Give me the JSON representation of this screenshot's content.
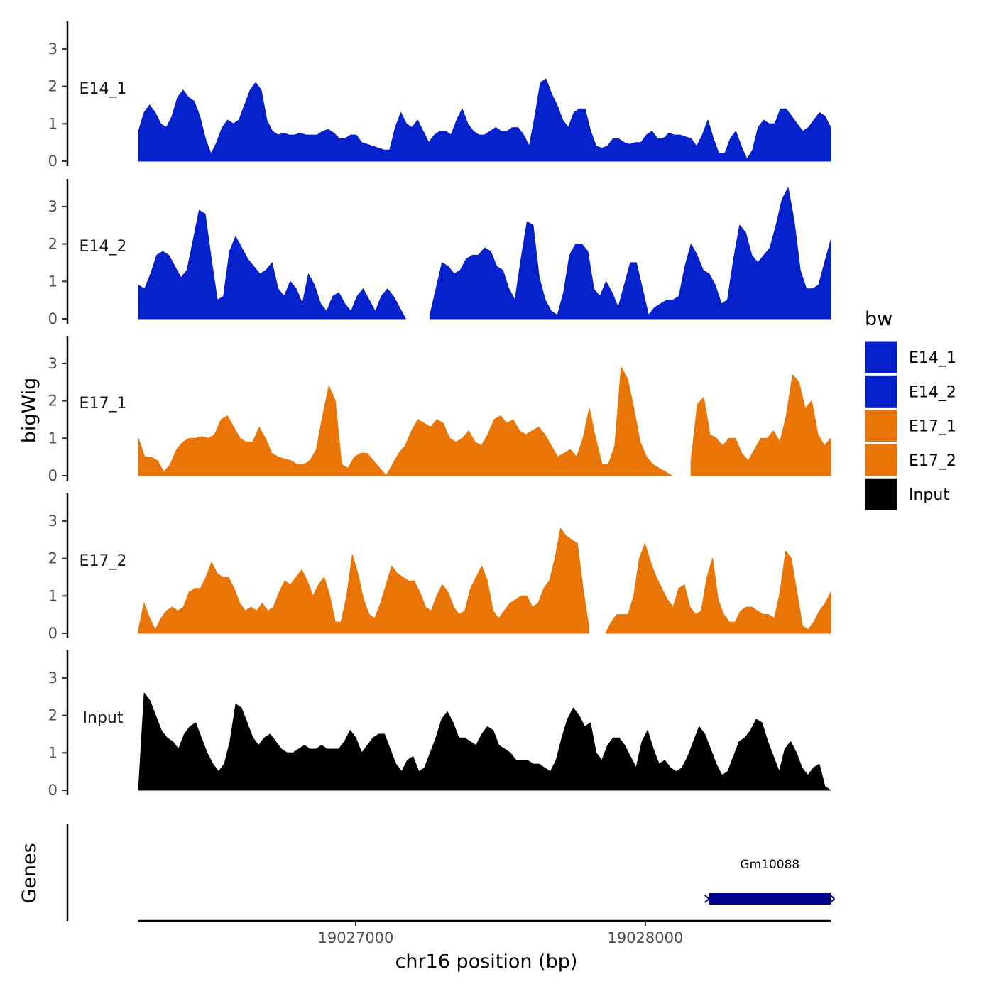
{
  "chart_data": {
    "type": "area",
    "title": "",
    "xlabel": "chr16 position (bp)",
    "ylabel": "bigWig",
    "genes_label": "Genes",
    "xlim": [
      19026250,
      19028640
    ],
    "x_ticks": [
      19027000,
      19028000
    ],
    "x_tick_labels": [
      "19027000",
      "19028000"
    ],
    "ylim": [
      0,
      3.7
    ],
    "y_ticks": [
      0,
      1,
      2,
      3
    ],
    "y_tick_labels": [
      "0",
      "1",
      "2",
      "3"
    ],
    "legend": {
      "title": "bw",
      "position": "right",
      "entries": [
        {
          "name": "E14_1",
          "color": "#0421CC"
        },
        {
          "name": "E14_2",
          "color": "#0421CC"
        },
        {
          "name": "E17_1",
          "color": "#E87505"
        },
        {
          "name": "E17_2",
          "color": "#E87505"
        },
        {
          "name": "Input",
          "color": "#000000"
        }
      ]
    },
    "series": [
      {
        "name": "E14_1",
        "color": "#0421CC",
        "x_start": 19026250,
        "x_end": 19028640,
        "values": [
          0.8,
          1.3,
          1.5,
          1.3,
          1.0,
          0.9,
          1.2,
          1.7,
          1.9,
          1.7,
          1.6,
          1.2,
          0.6,
          0.2,
          0.5,
          0.9,
          1.1,
          1.0,
          1.1,
          1.5,
          1.9,
          2.1,
          1.9,
          1.1,
          0.8,
          0.7,
          0.75,
          0.7,
          0.7,
          0.75,
          0.7,
          0.7,
          0.7,
          0.8,
          0.85,
          0.75,
          0.6,
          0.6,
          0.7,
          0.7,
          0.5,
          0.45,
          0.4,
          0.35,
          0.3,
          0.3,
          0.9,
          1.3,
          1.0,
          0.9,
          1.1,
          0.8,
          0.5,
          0.7,
          0.8,
          0.8,
          0.7,
          1.1,
          1.4,
          1.0,
          0.8,
          0.7,
          0.7,
          0.8,
          0.9,
          0.8,
          0.8,
          0.9,
          0.9,
          0.7,
          0.4,
          1.2,
          2.1,
          2.2,
          1.8,
          1.5,
          1.1,
          0.9,
          1.3,
          1.4,
          1.4,
          0.8,
          0.4,
          0.35,
          0.4,
          0.6,
          0.6,
          0.5,
          0.45,
          0.5,
          0.5,
          0.7,
          0.8,
          0.6,
          0.6,
          0.75,
          0.7,
          0.7,
          0.65,
          0.6,
          0.4,
          0.7,
          1.1,
          0.6,
          0.2,
          0.2,
          0.6,
          0.8,
          0.4,
          0.05,
          0.3,
          0.9,
          1.1,
          1.0,
          1.0,
          1.4,
          1.4,
          1.2,
          1.0,
          0.8,
          0.9,
          1.1,
          1.3,
          1.2,
          0.9
        ]
      },
      {
        "name": "E14_2",
        "color": "#0421CC",
        "x_start": 19026250,
        "x_end": 19028640,
        "values": [
          0.9,
          0.8,
          1.2,
          1.7,
          1.8,
          1.7,
          1.4,
          1.1,
          1.3,
          2.1,
          2.9,
          2.8,
          1.6,
          0.5,
          0.6,
          1.8,
          2.2,
          1.9,
          1.6,
          1.4,
          1.2,
          1.3,
          1.5,
          0.8,
          0.6,
          1.0,
          0.8,
          0.4,
          1.2,
          0.9,
          0.4,
          0.2,
          0.6,
          0.7,
          0.4,
          0.2,
          0.6,
          0.8,
          0.5,
          0.2,
          0.6,
          0.8,
          0.6,
          0.3,
          0.0,
          null,
          null,
          null,
          0.1,
          0.8,
          1.5,
          1.4,
          1.2,
          1.3,
          1.6,
          1.7,
          1.7,
          1.9,
          1.8,
          1.4,
          1.3,
          0.8,
          0.5,
          1.6,
          2.6,
          2.5,
          1.1,
          0.5,
          0.2,
          0.1,
          0.7,
          1.7,
          2.0,
          2.0,
          1.8,
          0.8,
          0.6,
          1.0,
          0.7,
          0.3,
          0.9,
          1.5,
          1.5,
          0.8,
          0.1,
          0.3,
          0.4,
          0.5,
          0.5,
          0.6,
          1.4,
          2.0,
          1.7,
          1.3,
          1.2,
          0.9,
          0.4,
          0.5,
          1.6,
          2.5,
          2.3,
          1.7,
          1.5,
          1.7,
          1.9,
          2.5,
          3.2,
          3.5,
          2.6,
          1.3,
          0.8,
          0.8,
          0.9,
          1.5,
          2.1
        ]
      },
      {
        "name": "E17_1",
        "color": "#E87505",
        "x_start": 19026250,
        "x_end": 19028640,
        "values": [
          1.0,
          0.5,
          0.5,
          0.4,
          0.1,
          0.3,
          0.7,
          0.9,
          1.0,
          1.0,
          1.05,
          1.0,
          1.1,
          1.5,
          1.6,
          1.3,
          1.0,
          0.9,
          0.9,
          1.3,
          1.0,
          0.6,
          0.5,
          0.45,
          0.4,
          0.3,
          0.3,
          0.4,
          0.7,
          1.6,
          2.4,
          2.0,
          0.3,
          0.2,
          0.5,
          0.6,
          0.6,
          0.4,
          0.2,
          0.0,
          0.3,
          0.6,
          0.8,
          1.2,
          1.5,
          1.4,
          1.3,
          1.5,
          1.4,
          1.0,
          0.9,
          1.0,
          1.2,
          0.9,
          0.8,
          1.1,
          1.5,
          1.6,
          1.4,
          1.5,
          1.2,
          1.1,
          1.2,
          1.3,
          1.1,
          0.8,
          0.5,
          0.6,
          0.7,
          0.5,
          1.0,
          1.8,
          1.0,
          0.3,
          0.3,
          0.8,
          2.9,
          2.6,
          1.8,
          0.9,
          0.5,
          0.3,
          0.2,
          0.1,
          0.0,
          null,
          null,
          0.4,
          1.9,
          2.1,
          1.1,
          1.0,
          0.8,
          1.0,
          1.0,
          0.6,
          0.4,
          0.7,
          1.0,
          1.0,
          1.2,
          0.9,
          1.6,
          2.7,
          2.5,
          1.8,
          2.0,
          1.1,
          0.8,
          1.0
        ]
      },
      {
        "name": "E17_2",
        "color": "#E87505",
        "x_start": 19026250,
        "x_end": 19028640,
        "values": [
          0.1,
          0.8,
          0.4,
          0.1,
          0.4,
          0.6,
          0.7,
          0.6,
          0.7,
          1.1,
          1.2,
          1.2,
          1.5,
          1.9,
          1.6,
          1.5,
          1.5,
          1.2,
          0.8,
          0.6,
          0.7,
          0.6,
          0.8,
          0.6,
          0.7,
          1.1,
          1.4,
          1.3,
          1.5,
          1.7,
          1.4,
          1.0,
          1.3,
          1.5,
          1.0,
          0.3,
          0.3,
          1.0,
          2.1,
          1.6,
          0.9,
          0.5,
          0.4,
          0.8,
          1.3,
          1.8,
          1.6,
          1.5,
          1.4,
          1.4,
          1.1,
          0.7,
          0.6,
          1.0,
          1.3,
          1.1,
          0.7,
          0.5,
          0.6,
          1.2,
          1.5,
          1.8,
          1.4,
          0.6,
          0.4,
          0.6,
          0.8,
          0.9,
          1.0,
          1.0,
          0.7,
          0.8,
          1.2,
          1.4,
          2.0,
          2.8,
          2.6,
          2.5,
          2.4,
          1.2,
          0.2,
          null,
          null,
          0.0,
          0.3,
          0.5,
          0.5,
          0.5,
          1.0,
          2.0,
          2.4,
          1.9,
          1.5,
          1.2,
          0.9,
          0.7,
          1.2,
          1.3,
          0.7,
          0.5,
          0.6,
          1.5,
          2.0,
          0.9,
          0.5,
          0.3,
          0.3,
          0.6,
          0.7,
          0.7,
          0.6,
          0.5,
          0.5,
          0.4,
          1.1,
          2.2,
          2.0,
          1.1,
          0.2,
          0.1,
          0.3,
          0.6,
          0.8,
          1.1
        ]
      },
      {
        "name": "Input",
        "color": "#000000",
        "x_start": 19026250,
        "x_end": 19028640,
        "values": [
          0.0,
          2.6,
          2.4,
          2.0,
          1.6,
          1.4,
          1.3,
          1.1,
          1.5,
          1.7,
          1.8,
          1.4,
          1.0,
          0.7,
          0.5,
          0.7,
          1.3,
          2.3,
          2.2,
          1.8,
          1.4,
          1.2,
          1.4,
          1.5,
          1.3,
          1.1,
          1.0,
          1.0,
          1.1,
          1.2,
          1.1,
          1.1,
          1.2,
          1.1,
          1.1,
          1.1,
          1.3,
          1.6,
          1.4,
          1.0,
          1.2,
          1.4,
          1.5,
          1.5,
          1.1,
          0.7,
          0.5,
          0.8,
          0.9,
          0.5,
          0.6,
          1.0,
          1.4,
          1.9,
          2.1,
          1.8,
          1.4,
          1.4,
          1.3,
          1.2,
          1.5,
          1.7,
          1.6,
          1.2,
          1.1,
          1.0,
          0.8,
          0.8,
          0.8,
          0.7,
          0.7,
          0.6,
          0.5,
          0.8,
          1.4,
          1.9,
          2.2,
          2.0,
          1.7,
          1.8,
          1.0,
          0.8,
          1.2,
          1.4,
          1.4,
          1.2,
          0.9,
          0.6,
          1.3,
          1.6,
          1.1,
          0.7,
          0.8,
          0.6,
          0.5,
          0.6,
          0.9,
          1.3,
          1.7,
          1.5,
          1.1,
          0.7,
          0.4,
          0.5,
          0.9,
          1.3,
          1.4,
          1.6,
          1.9,
          1.8,
          1.3,
          0.9,
          0.5,
          1.1,
          1.3,
          1.0,
          0.6,
          0.4,
          0.6,
          0.7,
          0.1,
          0.0
        ]
      }
    ],
    "genes": [
      {
        "name": "Gm10088",
        "start": 19028220,
        "end": 19028640,
        "strand": "+",
        "color": "#00008B"
      }
    ]
  }
}
